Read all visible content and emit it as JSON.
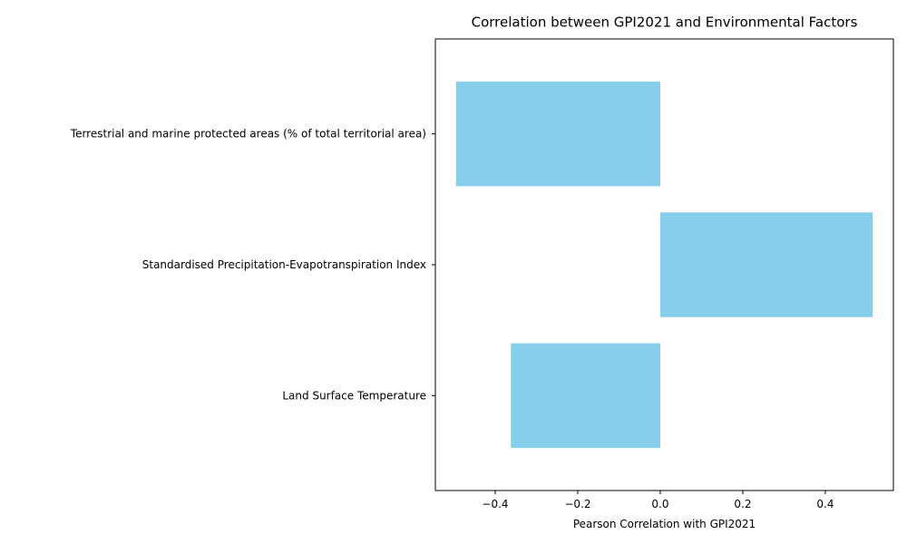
{
  "chart_data": {
    "type": "bar",
    "orientation": "horizontal",
    "title": "Correlation between GPI2021 and Environmental Factors",
    "xlabel": "Pearson Correlation with GPI2021",
    "ylabel": "",
    "categories": [
      "Terrestrial and marine protected areas (% of total territorial area)",
      "Standardised Precipitation-Evapotranspiration Index",
      "Land Surface Temperature"
    ],
    "values": [
      -0.495,
      0.515,
      -0.362
    ],
    "xlim": [
      -0.545,
      0.565
    ],
    "xticks": [
      -0.4,
      -0.2,
      0.0,
      0.2,
      0.4
    ],
    "xtick_labels": [
      "−0.4",
      "−0.2",
      "0.0",
      "0.2",
      "0.4"
    ],
    "bar_color": "#87ceeb",
    "grid": false
  }
}
